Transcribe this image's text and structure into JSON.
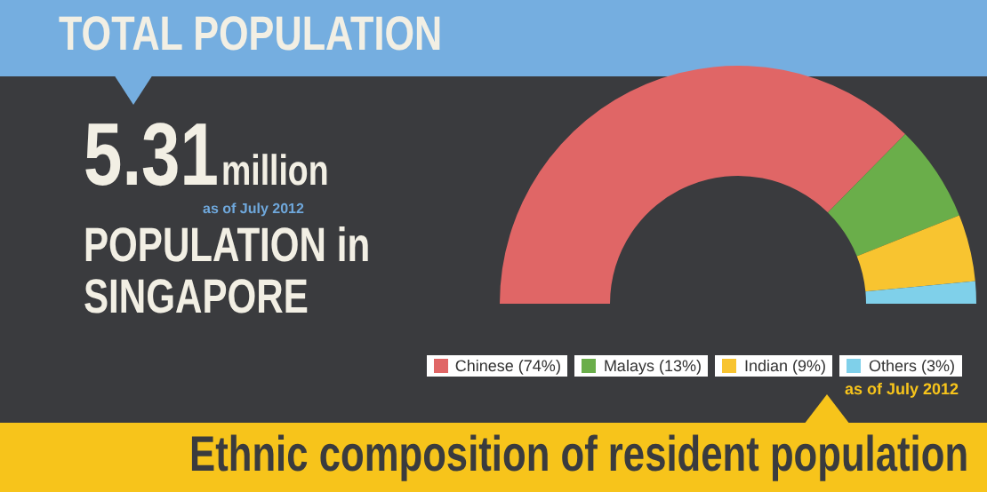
{
  "chart_data": {
    "type": "donut",
    "title": "TOTAL POPULATION",
    "subtitle": "Ethnic composition of resident population",
    "annotations": [
      "5.31",
      "million",
      "as of July 2012",
      "POPULATION in",
      "SINGAPORE",
      "as of July 2012"
    ],
    "categories": [
      "Chinese (74%)",
      "Malays (13%)",
      "Indian (9%)",
      "Others (3%)"
    ],
    "values": [
      74,
      13,
      9,
      3
    ],
    "colors": [
      "#e06666",
      "#6aae4a",
      "#f8c430",
      "#7fd0ea"
    ],
    "legend": "bottom"
  }
}
